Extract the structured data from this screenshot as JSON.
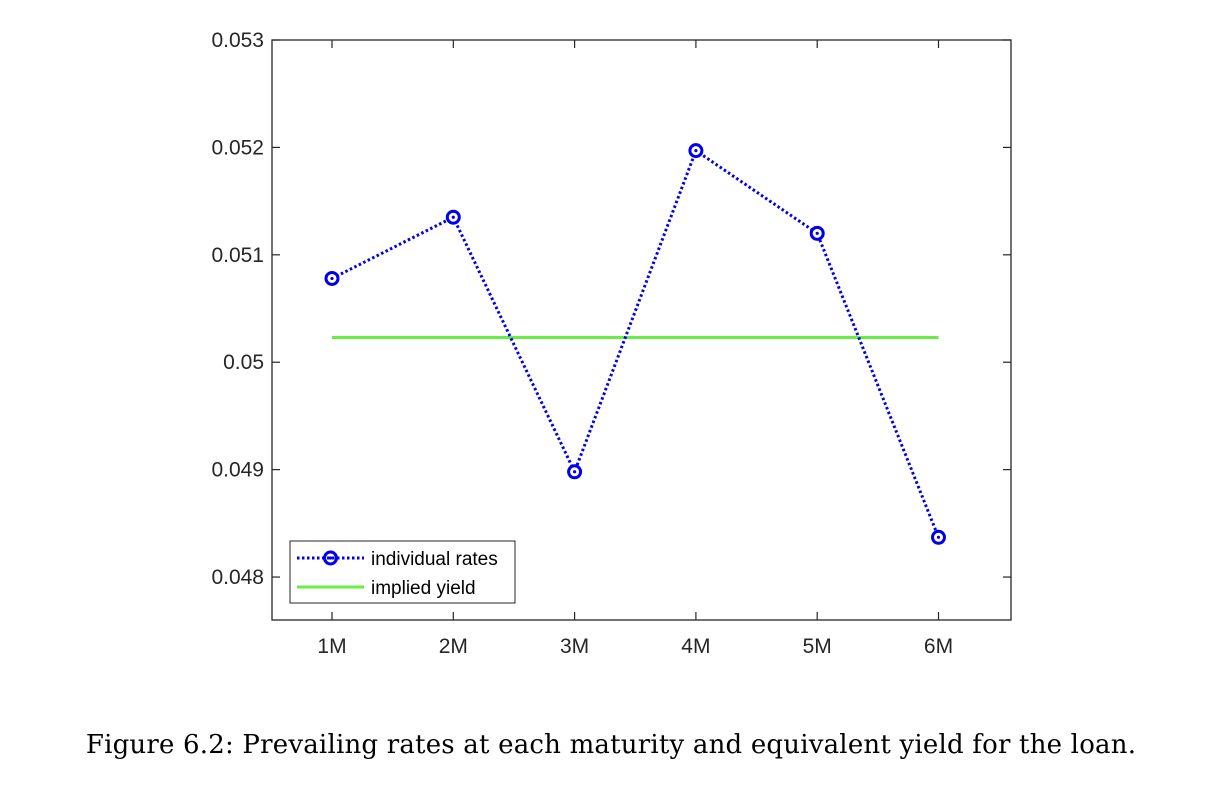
{
  "chart_data": {
    "type": "line",
    "categories": [
      "1M",
      "2M",
      "3M",
      "4M",
      "5M",
      "6M"
    ],
    "series": [
      {
        "name": "individual rates",
        "values": [
          0.05078,
          0.05135,
          0.04898,
          0.05197,
          0.0512,
          0.04837
        ],
        "color": "#0000ee",
        "style": "dotted line with circle markers"
      },
      {
        "name": "implied yield",
        "values": [
          0.05023,
          0.05023,
          0.05023,
          0.05023,
          0.05023,
          0.05023
        ],
        "color": "#66ee44",
        "style": "solid line"
      }
    ],
    "yticks": [
      "0.048",
      "0.049",
      "0.05",
      "0.051",
      "0.052",
      "0.053"
    ],
    "ytick_values": [
      0.048,
      0.049,
      0.05,
      0.051,
      0.052,
      0.053
    ],
    "ylim": [
      0.0476,
      0.053
    ],
    "grid": false,
    "legend_position": "bottom-left"
  },
  "caption": "Figure 6.2: Prevailing rates at each maturity and equivalent yield for the loan."
}
